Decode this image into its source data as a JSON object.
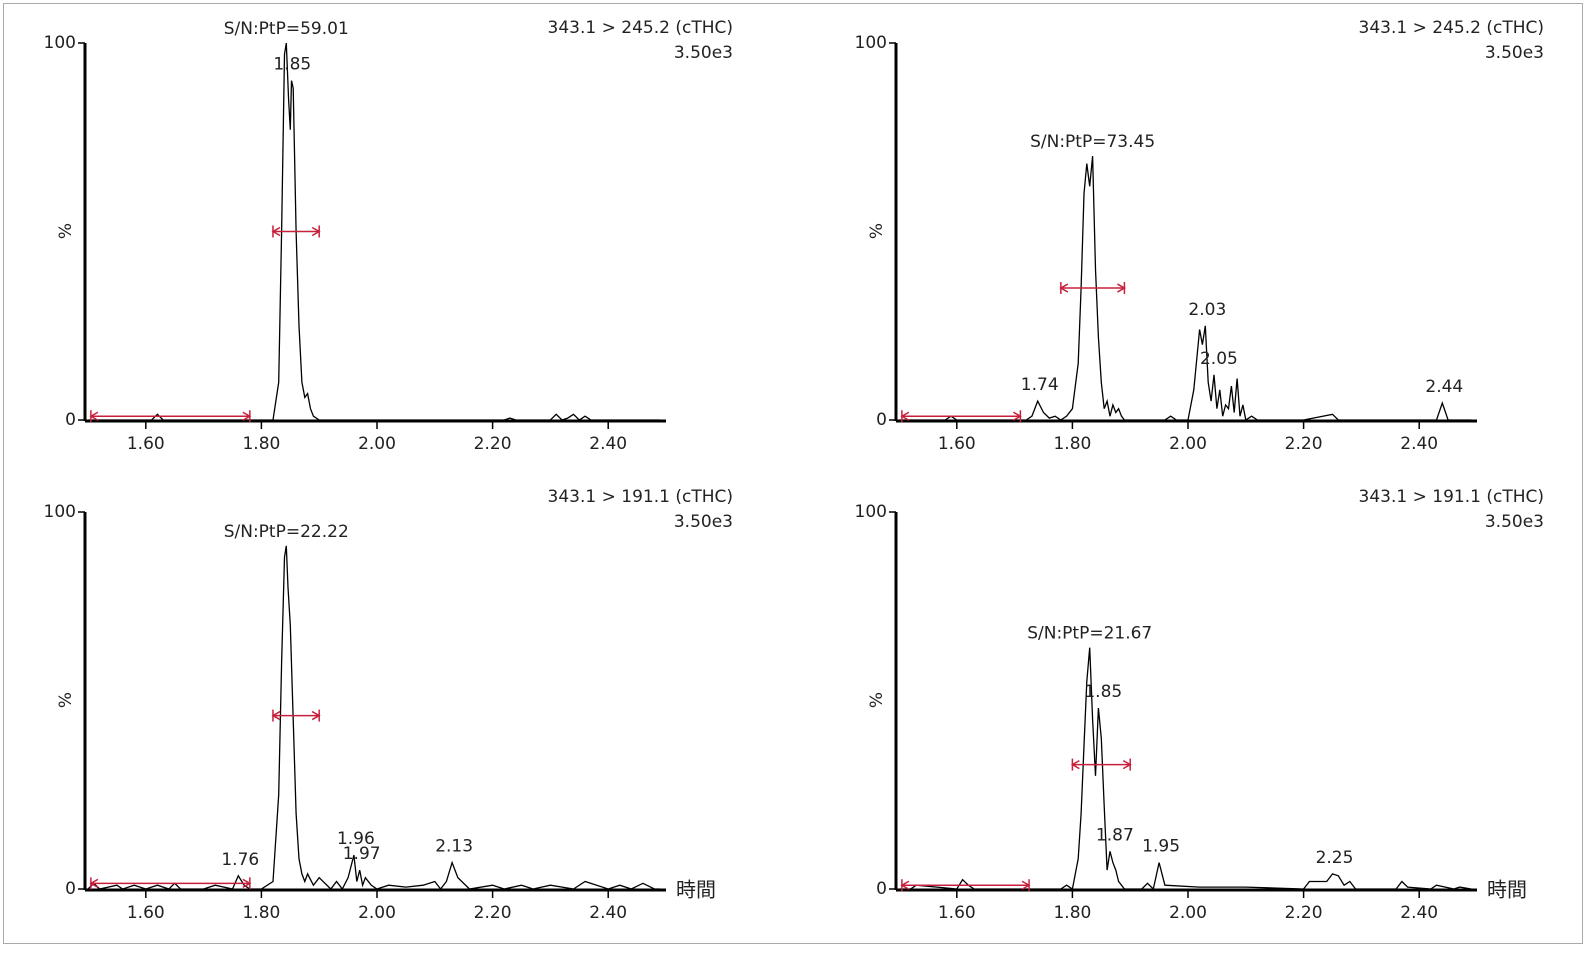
{
  "chart_data": [
    {
      "type": "line",
      "title": "343.1 > 245.2 (cTHC)",
      "subtitle": "3.50e3",
      "y_label": "%",
      "x": [
        1.5,
        1.61,
        1.62,
        1.63,
        1.8,
        1.82,
        1.83,
        1.835,
        1.84,
        1.843,
        1.847,
        1.85,
        1.852,
        1.855,
        1.86,
        1.865,
        1.87,
        1.875,
        1.88,
        1.885,
        1.89,
        1.9,
        2.22,
        2.23,
        2.24,
        2.3,
        2.31,
        2.32,
        2.33,
        2.34,
        2.35,
        2.36,
        2.37,
        2.49
      ],
      "values": [
        0,
        0,
        1.5,
        0,
        0,
        0,
        10,
        50,
        97,
        100,
        85,
        77,
        90,
        88,
        50,
        25,
        10,
        6,
        7,
        3,
        1,
        0,
        0,
        0.5,
        0,
        0,
        1.5,
        0,
        0.5,
        1.5,
        0,
        1,
        0,
        0
      ],
      "color": "#000000",
      "xlim": [
        1.5,
        2.5
      ],
      "ylim": [
        0,
        100
      ],
      "xticks": [
        {
          "value": 1.6,
          "label": "1.60"
        },
        {
          "value": 1.8,
          "label": "1.80"
        },
        {
          "value": 2.0,
          "label": "2.00"
        },
        {
          "value": 2.2,
          "label": "2.20"
        },
        {
          "value": 2.4,
          "label": "2.40"
        }
      ],
      "yticks": [
        0,
        100
      ],
      "peaks": [
        1.85
      ],
      "annotation": "S/N:PtP=59.01",
      "ranges": [
        {
          "x": [
            1.505,
            1.78
          ],
          "y": 1
        },
        {
          "x": [
            1.82,
            1.9
          ],
          "y": 50
        }
      ],
      "range_color": "#c8203c"
    },
    {
      "type": "line",
      "title": "343.1 > 245.2 (cTHC)",
      "subtitle": "3.50e3",
      "y_label": "%",
      "x": [
        1.5,
        1.58,
        1.59,
        1.6,
        1.72,
        1.73,
        1.74,
        1.75,
        1.76,
        1.77,
        1.78,
        1.79,
        1.8,
        1.81,
        1.815,
        1.82,
        1.825,
        1.83,
        1.835,
        1.84,
        1.845,
        1.85,
        1.855,
        1.86,
        1.865,
        1.87,
        1.875,
        1.88,
        1.885,
        1.89,
        1.96,
        1.97,
        1.98,
        2.0,
        2.01,
        2.02,
        2.025,
        2.03,
        2.035,
        2.04,
        2.045,
        2.05,
        2.055,
        2.06,
        2.065,
        2.07,
        2.075,
        2.08,
        2.085,
        2.09,
        2.095,
        2.1,
        2.11,
        2.12,
        2.2,
        2.25,
        2.26,
        2.43,
        2.44,
        2.45,
        2.49
      ],
      "values": [
        0,
        0,
        1,
        0,
        0,
        1,
        5,
        2,
        0.5,
        1,
        0,
        1,
        3,
        15,
        35,
        60,
        68,
        62,
        70,
        40,
        22,
        10,
        3,
        5,
        1,
        4,
        2,
        3,
        1,
        0,
        0,
        1,
        0,
        0,
        8,
        24,
        20,
        25,
        10,
        5,
        12,
        3,
        8,
        1,
        4,
        3,
        9,
        2,
        11,
        1,
        4,
        0,
        1,
        0,
        0,
        1.5,
        0,
        0,
        4.5,
        0,
        0
      ],
      "color": "#000000",
      "xlim": [
        1.5,
        2.5
      ],
      "ylim": [
        0,
        100
      ],
      "xticks": [
        {
          "value": 1.6,
          "label": "1.60"
        },
        {
          "value": 1.8,
          "label": "1.80"
        },
        {
          "value": 2.0,
          "label": "2.00"
        },
        {
          "value": 2.2,
          "label": "2.20"
        },
        {
          "value": 2.4,
          "label": "2.40"
        }
      ],
      "yticks": [
        0,
        100
      ],
      "peaks": [
        1.74,
        2.03,
        2.05,
        2.44
      ],
      "annotation": "S/N:PtP=73.45",
      "ranges": [
        {
          "x": [
            1.505,
            1.71
          ],
          "y": 1
        },
        {
          "x": [
            1.78,
            1.89
          ],
          "y": 35
        }
      ],
      "range_color": "#c8203c"
    },
    {
      "type": "line",
      "title": "343.1 > 191.1 (cTHC)",
      "subtitle": "3.50e3",
      "y_label": "%",
      "x_label": "時間",
      "x": [
        1.5,
        1.51,
        1.52,
        1.55,
        1.56,
        1.58,
        1.6,
        1.62,
        1.64,
        1.65,
        1.66,
        1.7,
        1.72,
        1.75,
        1.76,
        1.77,
        1.78,
        1.8,
        1.82,
        1.83,
        1.835,
        1.84,
        1.843,
        1.846,
        1.85,
        1.855,
        1.86,
        1.865,
        1.87,
        1.875,
        1.88,
        1.89,
        1.9,
        1.92,
        1.93,
        1.94,
        1.95,
        1.96,
        1.965,
        1.97,
        1.975,
        1.98,
        1.99,
        2.0,
        2.02,
        2.05,
        2.08,
        2.1,
        2.11,
        2.12,
        2.13,
        2.14,
        2.16,
        2.2,
        2.22,
        2.25,
        2.27,
        2.3,
        2.34,
        2.36,
        2.4,
        2.42,
        2.44,
        2.46,
        2.48,
        2.49
      ],
      "values": [
        0,
        1.5,
        0,
        1,
        0,
        1,
        0,
        1,
        0,
        1.5,
        0,
        0,
        1,
        0,
        3.5,
        1,
        0,
        0,
        2,
        25,
        60,
        88,
        91,
        80,
        70,
        45,
        20,
        8,
        4,
        2,
        4,
        1,
        3,
        0,
        2,
        0,
        3,
        9,
        2,
        5,
        1,
        3,
        1,
        0,
        1,
        0.5,
        1,
        2,
        0,
        2,
        7,
        3,
        0,
        1,
        0,
        1,
        0,
        1,
        0,
        2,
        0,
        1,
        0,
        1.5,
        0,
        0
      ],
      "color": "#000000",
      "xlim": [
        1.5,
        2.5
      ],
      "ylim": [
        0,
        100
      ],
      "xticks": [
        {
          "value": 1.6,
          "label": "1.60"
        },
        {
          "value": 1.8,
          "label": "1.80"
        },
        {
          "value": 2.0,
          "label": "2.00"
        },
        {
          "value": 2.2,
          "label": "2.20"
        },
        {
          "value": 2.4,
          "label": "2.40"
        }
      ],
      "yticks": [
        0,
        100
      ],
      "peaks": [
        1.76,
        1.96,
        1.97,
        2.13
      ],
      "annotation": "S/N:PtP=22.22",
      "ranges": [
        {
          "x": [
            1.505,
            1.78
          ],
          "y": 1.5
        },
        {
          "x": [
            1.82,
            1.9
          ],
          "y": 46
        }
      ],
      "range_color": "#c8203c"
    },
    {
      "type": "line",
      "title": "343.1 > 191.1 (cTHC)",
      "subtitle": "3.50e3",
      "y_label": "%",
      "x_label": "時間",
      "x": [
        1.5,
        1.52,
        1.53,
        1.6,
        1.61,
        1.62,
        1.63,
        1.78,
        1.79,
        1.8,
        1.81,
        1.815,
        1.82,
        1.825,
        1.83,
        1.835,
        1.84,
        1.845,
        1.85,
        1.855,
        1.86,
        1.865,
        1.87,
        1.875,
        1.88,
        1.885,
        1.89,
        1.92,
        1.93,
        1.94,
        1.95,
        1.96,
        2.02,
        2.1,
        2.2,
        2.21,
        2.24,
        2.25,
        2.26,
        2.27,
        2.28,
        2.29,
        2.36,
        2.37,
        2.38,
        2.42,
        2.43,
        2.46,
        2.47,
        2.49
      ],
      "values": [
        0,
        0,
        1,
        0,
        2.5,
        1,
        0,
        0,
        1,
        0,
        8,
        20,
        38,
        55,
        64,
        45,
        30,
        48,
        40,
        22,
        5,
        10,
        7,
        5,
        2,
        1,
        0,
        0,
        1.5,
        0,
        7,
        1,
        0.5,
        0.5,
        0,
        2,
        2,
        4,
        3.5,
        1,
        2,
        0,
        0,
        2,
        0.5,
        0,
        1,
        0,
        0.5,
        0
      ],
      "color": "#000000",
      "xlim": [
        1.5,
        2.5
      ],
      "ylim": [
        0,
        100
      ],
      "xticks": [
        {
          "value": 1.6,
          "label": "1.60"
        },
        {
          "value": 1.8,
          "label": "1.80"
        },
        {
          "value": 2.0,
          "label": "2.00"
        },
        {
          "value": 2.2,
          "label": "2.20"
        },
        {
          "value": 2.4,
          "label": "2.40"
        }
      ],
      "yticks": [
        0,
        100
      ],
      "peaks": [
        1.85,
        1.87,
        1.95,
        2.25
      ],
      "annotation": "S/N:PtP=21.67",
      "ranges": [
        {
          "x": [
            1.505,
            1.725
          ],
          "y": 1
        },
        {
          "x": [
            1.8,
            1.9
          ],
          "y": 33
        }
      ],
      "range_color": "#c8203c"
    }
  ]
}
